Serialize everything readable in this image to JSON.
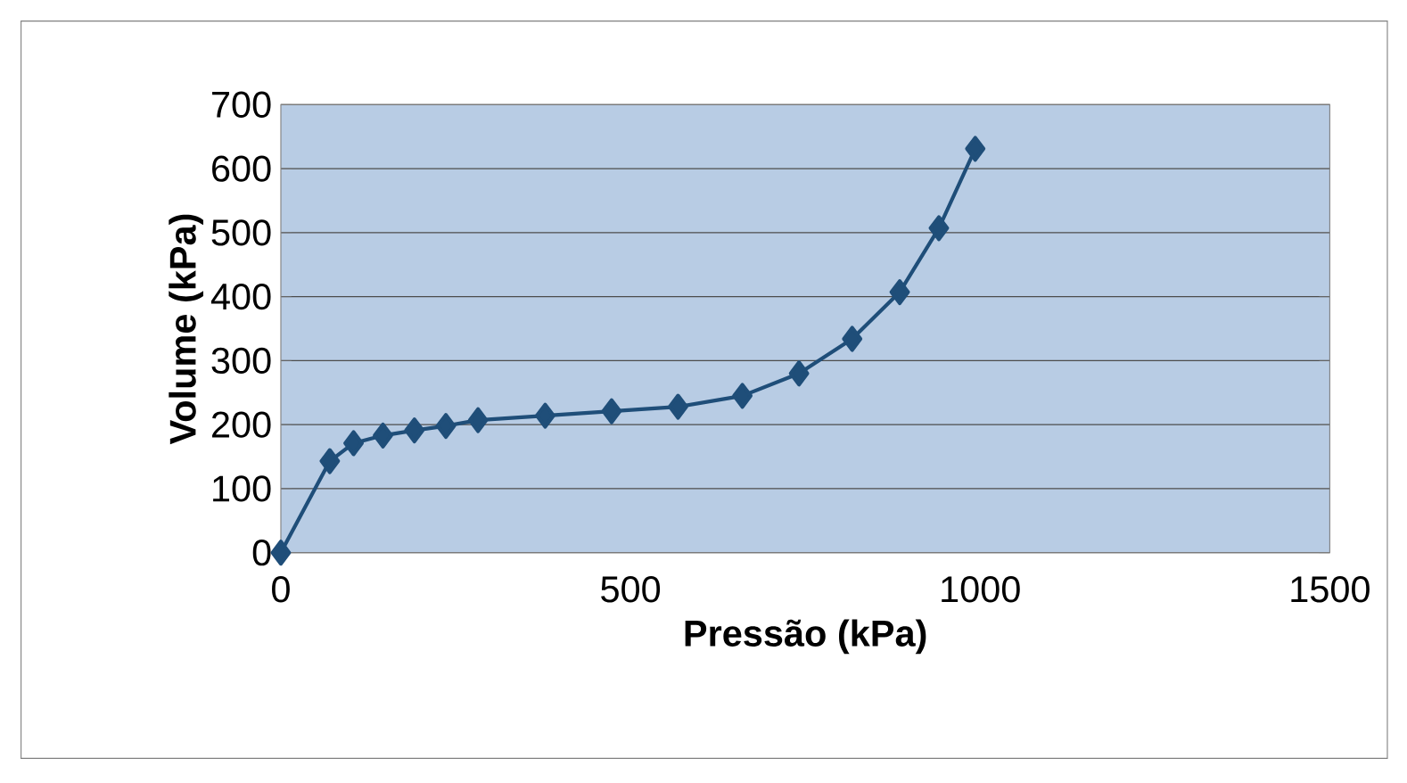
{
  "chart_data": {
    "type": "line",
    "xlabel": "Pressão (kPa)",
    "ylabel": "Volume (kPa)",
    "x": [
      0,
      70,
      104,
      146,
      191,
      236,
      282,
      378,
      473,
      568,
      660,
      741,
      817,
      885,
      941,
      993
    ],
    "series": [
      {
        "color": "#1f4e79",
        "values": [
          0,
          143,
          171,
          183,
          191,
          198,
          207,
          214,
          221,
          228,
          245,
          280,
          334,
          407,
          507,
          631
        ]
      }
    ],
    "xlim": [
      0,
      1500
    ],
    "xticks": [
      0,
      500,
      1000,
      1500
    ],
    "ylim": [
      0,
      700
    ],
    "yticks": [
      0,
      100,
      200,
      300,
      400,
      500,
      600,
      700
    ],
    "grid": "y",
    "marker": "diamond",
    "line_style": "solid"
  }
}
